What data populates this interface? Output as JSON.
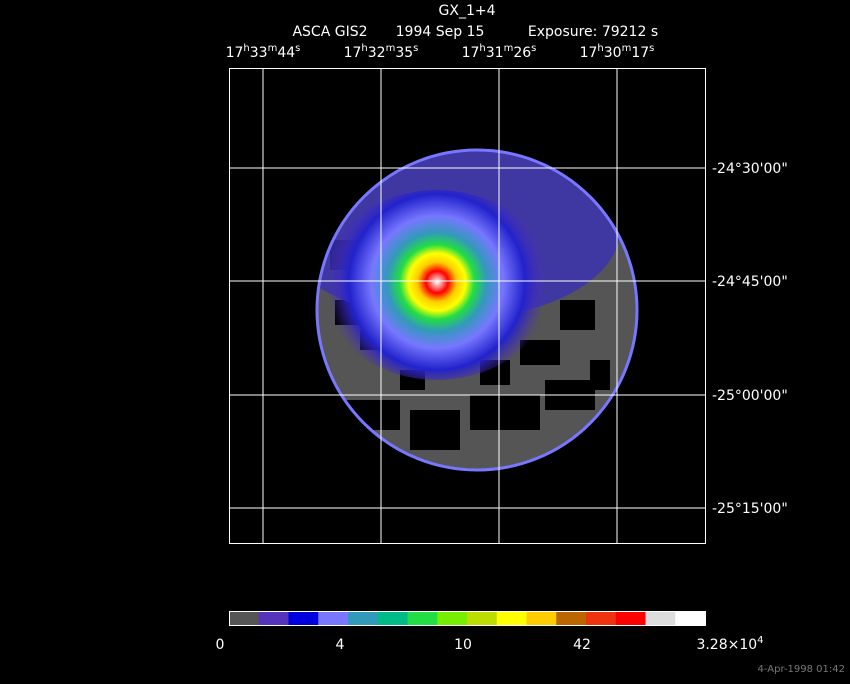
{
  "header": {
    "title": "GX_1+4",
    "instrument": "ASCA GIS2",
    "date": "1994 Sep 15",
    "exposure": "Exposure: 79212 s"
  },
  "ra_labels": [
    [
      "17",
      "h",
      "33",
      "m",
      "44",
      "s"
    ],
    [
      "17",
      "h",
      "32",
      "m",
      "35",
      "s"
    ],
    [
      "17",
      "h",
      "31",
      "m",
      "26",
      "s"
    ],
    [
      "17",
      "h",
      "30",
      "m",
      "17",
      "s"
    ]
  ],
  "dec_labels": [
    "-24°30'00\"",
    "-24°45'00\"",
    "-25°00'00\"",
    "-25°15'00\""
  ],
  "colorbar": {
    "colors": [
      "#555555",
      "#5533bb",
      "#0000dd",
      "#7777ff",
      "#3399bb",
      "#00bb88",
      "#22dd44",
      "#77ee00",
      "#bbdd00",
      "#ffff00",
      "#ffcc00",
      "#bb6600",
      "#ee3311",
      "#ff0000",
      "#dddddd",
      "#ffffff"
    ],
    "labels": [
      [
        "0"
      ],
      [
        "4"
      ],
      [
        "10"
      ],
      [
        "42"
      ],
      [
        "3.28×10",
        "4"
      ]
    ]
  },
  "footer": "4-Apr-1998 01:42"
}
